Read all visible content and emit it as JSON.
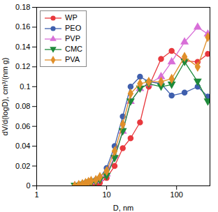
{
  "chart_data": {
    "type": "line",
    "x_label": "D, nm",
    "y_label": "dV/d(logD), cm³/(nm g)",
    "log": "x",
    "grid": false,
    "legend": "upper left",
    "xlim": [
      1,
      300
    ],
    "xticks": [
      1,
      10,
      100
    ],
    "ylim": [
      0,
      0.18
    ],
    "yticks": [
      0,
      0.02,
      0.04,
      0.06,
      0.08,
      0.1,
      0.12,
      0.14,
      0.16,
      0.18
    ],
    "x": [
      3.5,
      4,
      4.5,
      5,
      5.5,
      6,
      7,
      8,
      10,
      13,
      17,
      22,
      30,
      40,
      60,
      85,
      130,
      200,
      280
    ],
    "series": [
      {
        "name": "WP",
        "color": "#e8383d",
        "marker": "circle",
        "values": [
          0,
          0,
          0,
          0,
          0,
          0.001,
          0.002,
          0.003,
          0.008,
          0.02,
          0.038,
          0.048,
          0.064,
          0.1,
          0.128,
          0.136,
          0.126,
          0.125,
          0.133
        ]
      },
      {
        "name": "PEO",
        "color": "#3f5fad",
        "marker": "circle",
        "values": [
          0,
          0.001,
          0.002,
          0.003,
          0.004,
          0.005,
          0.006,
          0.008,
          0.018,
          0.04,
          0.07,
          0.1,
          0.11,
          0.105,
          0.103,
          0.091,
          0.094,
          0.1,
          0.09
        ]
      },
      {
        "name": "PVP",
        "color": "#d86fd8",
        "marker": "triangle",
        "values": [
          0,
          0,
          0.001,
          0.002,
          0.003,
          0.004,
          0.005,
          0.007,
          0.012,
          0.03,
          0.055,
          0.085,
          0.098,
          0.103,
          0.11,
          0.125,
          0.145,
          0.16,
          0.153
        ]
      },
      {
        "name": "CMC",
        "color": "#1e8a3a",
        "marker": "triangle-down",
        "values": [
          0,
          0,
          0.001,
          0.002,
          0.003,
          0.003,
          0.004,
          0.006,
          0.01,
          0.028,
          0.055,
          0.085,
          0.098,
          0.103,
          0.1,
          0.102,
          0.125,
          0.105,
          0.085
        ]
      },
      {
        "name": "PVA",
        "color": "#e08f2a",
        "marker": "diamond",
        "values": [
          0,
          0.001,
          0.002,
          0.003,
          0.004,
          0.005,
          0.006,
          0.009,
          0.015,
          0.035,
          0.062,
          0.093,
          0.103,
          0.105,
          0.105,
          0.108,
          0.13,
          0.12,
          0.15
        ]
      }
    ]
  }
}
